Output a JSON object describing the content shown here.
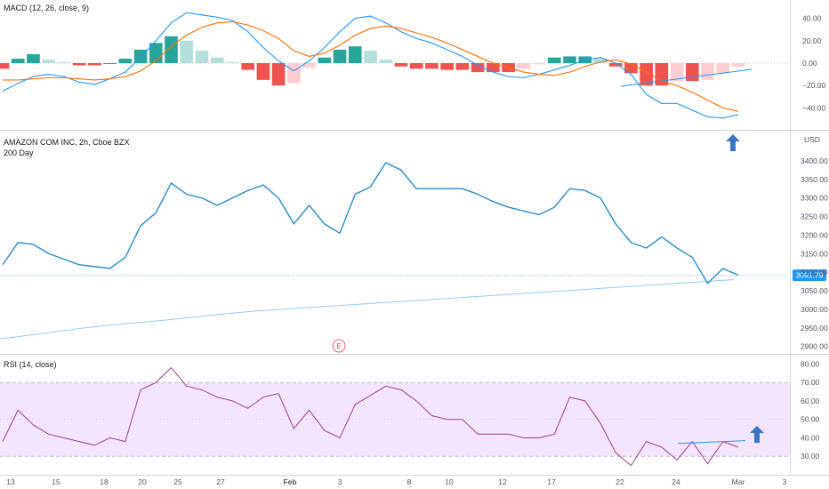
{
  "panels": {
    "macd": {
      "title": "MACD (12, 26, close, 9)"
    },
    "price": {
      "title": "AMAZON COM INC, 2h, Cboe BZX",
      "ma_label": "200 Day",
      "currency": "USD",
      "last_price": "3091.79",
      "earnings_marker": "E"
    },
    "rsi": {
      "title": "RSI (14, close)"
    }
  },
  "colors": {
    "macd_line": "#2196f3",
    "signal_line": "#ff6d00",
    "hist_pos_strong": "#26a69a",
    "hist_pos_weak": "#b2dfdb",
    "hist_neg_strong": "#ef5350",
    "hist_neg_weak": "#ffcdd2",
    "price_line": "#2a8cc8",
    "ma_line": "#90caf9",
    "rsi_line": "#9c3c8c",
    "rsi_band": "#f3e5fc",
    "annotation_arrow": "#3a76c4",
    "last_price_tag": "#2196f3"
  },
  "x_axis": {
    "labels": [
      "13",
      "15",
      "18",
      "20",
      "25",
      "27",
      "Feb",
      "3",
      "8",
      "10",
      "12",
      "17",
      "22",
      "24",
      "Mar",
      "3"
    ]
  },
  "chart_data": [
    {
      "type": "line",
      "title": "MACD (12, 26, close, 9)",
      "ylim": [
        -50,
        50
      ],
      "y_ticks": [
        "40.00",
        "20.00",
        "0.00",
        "−20.00",
        "−40.00"
      ],
      "series": [
        {
          "name": "MACD",
          "values": [
            -25,
            -18,
            -12,
            -10,
            -12,
            -17,
            -19,
            -14,
            -8,
            5,
            20,
            36,
            45,
            43,
            41,
            38,
            28,
            14,
            2,
            -7,
            2,
            14,
            28,
            40,
            42,
            36,
            28,
            22,
            18,
            12,
            6,
            -2,
            -8,
            -12,
            -13,
            -10,
            -6,
            -2,
            3,
            5,
            0,
            -10,
            -28,
            -36,
            -36,
            -42,
            -48,
            -49,
            -46
          ]
        },
        {
          "name": "Signal",
          "values": [
            -15,
            -15,
            -14,
            -13,
            -13,
            -14,
            -15,
            -14,
            -12,
            -7,
            2,
            15,
            25,
            32,
            36,
            37,
            34,
            29,
            22,
            11,
            6,
            9,
            16,
            25,
            31,
            33,
            31,
            27,
            23,
            18,
            12,
            6,
            0,
            -4,
            -8,
            -10,
            -11,
            -8,
            -3,
            1,
            3,
            -1,
            -8,
            -16,
            -20,
            -26,
            -33,
            -40,
            -43
          ]
        },
        {
          "name": "Histogram",
          "values": [
            -5,
            4,
            8,
            3,
            1,
            -2,
            -2,
            0,
            4,
            12,
            18,
            24,
            20,
            11,
            5,
            1,
            -6,
            -15,
            -20,
            -18,
            -4,
            5,
            12,
            15,
            11,
            3,
            -3,
            -5,
            -5,
            -6,
            -6,
            -8,
            -8,
            -8,
            -5,
            -1,
            5,
            6,
            6,
            4,
            -3,
            -9,
            -20,
            -20,
            -16,
            -16,
            -15,
            -9,
            -3
          ]
        }
      ]
    },
    {
      "type": "line",
      "title": "AMAZON COM INC, 2h, Cboe BZX",
      "ylim": [
        2880,
        3450
      ],
      "y_ticks": [
        "3400.00",
        "3350.00",
        "3300.00",
        "3250.00",
        "3200.00",
        "3150.00",
        "3100.00",
        "3050.00",
        "3000.00",
        "2950.00",
        "2900.00"
      ],
      "series": [
        {
          "name": "Price",
          "values": [
            3120,
            3180,
            3175,
            3150,
            3135,
            3120,
            3115,
            3110,
            3140,
            3225,
            3260,
            3340,
            3310,
            3300,
            3280,
            3300,
            3320,
            3335,
            3300,
            3230,
            3280,
            3230,
            3205,
            3310,
            3330,
            3395,
            3375,
            3325,
            3325,
            3325,
            3325,
            3310,
            3290,
            3275,
            3265,
            3255,
            3275,
            3325,
            3320,
            3300,
            3230,
            3180,
            3165,
            3195,
            3165,
            3140,
            3070,
            3110,
            3092
          ]
        },
        {
          "name": "200 Day",
          "values": [
            2920,
            2930,
            2940,
            2950,
            2958,
            2965,
            2972,
            2980,
            2988,
            2995,
            3000,
            3005,
            3010,
            3015,
            3020,
            3025,
            3030,
            3035,
            3040,
            3045,
            3050,
            3055,
            3060,
            3065,
            3070,
            3075,
            3080
          ]
        }
      ]
    },
    {
      "type": "line",
      "title": "RSI (14, close)",
      "ylim": [
        20,
        85
      ],
      "y_ticks": [
        "80.00",
        "70.00",
        "60.00",
        "50.00",
        "40.00",
        "30.00"
      ],
      "bands": [
        30,
        70
      ],
      "series": [
        {
          "name": "RSI",
          "values": [
            38,
            55,
            47,
            42,
            40,
            38,
            36,
            40,
            38,
            66,
            70,
            78,
            68,
            66,
            62,
            60,
            56,
            62,
            64,
            45,
            55,
            44,
            40,
            58,
            63,
            68,
            66,
            60,
            52,
            50,
            50,
            42,
            42,
            42,
            40,
            40,
            42,
            62,
            60,
            48,
            32,
            25,
            38,
            35,
            28,
            38,
            26,
            38,
            35
          ]
        }
      ]
    }
  ]
}
